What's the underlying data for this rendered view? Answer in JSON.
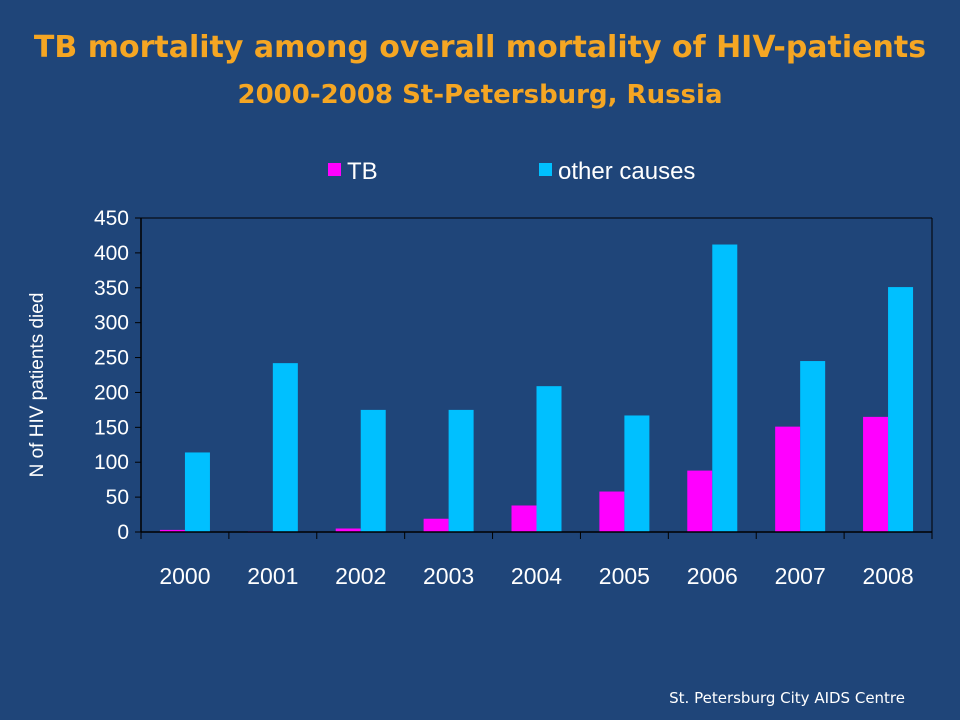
{
  "title": "TB mortality among overall mortality of HIV-patients",
  "subtitle": "2000-2008 St-Petersburg, Russia",
  "footer": "St. Petersburg City AIDS Centre",
  "colors": {
    "background": "#1f4579",
    "title": "#f5a623",
    "tb": "#ff00ff",
    "other": "#00c0ff",
    "axis": "#000000",
    "text": "#ffffff"
  },
  "chart_data": {
    "type": "bar",
    "categories": [
      "2000",
      "2001",
      "2002",
      "2003",
      "2004",
      "2005",
      "2006",
      "2007",
      "2008"
    ],
    "series": [
      {
        "name": "TB",
        "values": [
          3,
          1,
          5,
          19,
          38,
          58,
          88,
          151,
          165
        ]
      },
      {
        "name": "other causes",
        "values": [
          114,
          242,
          175,
          175,
          209,
          167,
          412,
          245,
          351
        ]
      }
    ],
    "xlabel": "",
    "ylabel": "N of HIV patients died",
    "ylim": [
      0,
      450
    ],
    "yticks": [
      "0",
      "50",
      "100",
      "150",
      "200",
      "250",
      "300",
      "350",
      "400",
      "450"
    ],
    "legend": "top",
    "grid": false
  }
}
